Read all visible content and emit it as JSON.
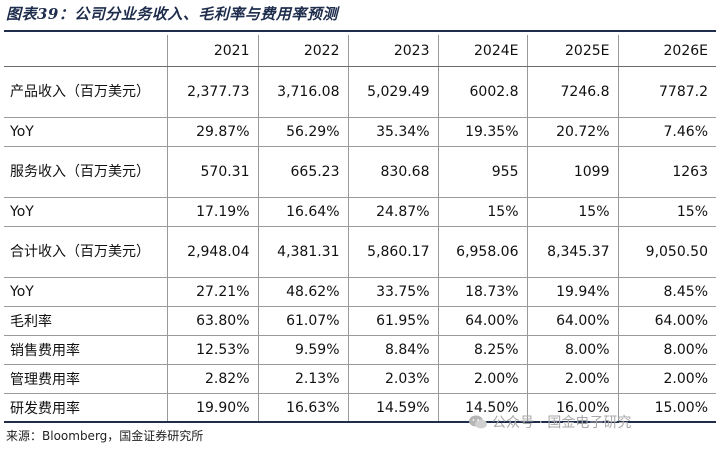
{
  "title": "图表39：公司分业务收入、毛利率与费用率预测",
  "columns": [
    "",
    "2021",
    "2022",
    "2023",
    "2024E",
    "2025E",
    "2026E"
  ],
  "rows": [
    {
      "label": "产品收入（百万美元）",
      "values": [
        "2,377.73",
        "3,716.08",
        "5,029.49",
        "6002.8",
        "7246.8",
        "7787.2"
      ]
    },
    {
      "label": "YoY",
      "values": [
        "29.87%",
        "56.29%",
        "35.34%",
        "19.35%",
        "20.72%",
        "7.46%"
      ]
    },
    {
      "label": "服务收入（百万美元）",
      "values": [
        "570.31",
        "665.23",
        "830.68",
        "955",
        "1099",
        "1263"
      ]
    },
    {
      "label": "YoY",
      "values": [
        "17.19%",
        "16.64%",
        "24.87%",
        "15%",
        "15%",
        "15%"
      ]
    },
    {
      "label": "合计收入（百万美元）",
      "values": [
        "2,948.04",
        "4,381.31",
        "5,860.17",
        "6,958.06",
        "8,345.37",
        "9,050.50"
      ]
    },
    {
      "label": "YoY",
      "values": [
        "27.21%",
        "48.62%",
        "33.75%",
        "18.73%",
        "19.94%",
        "8.45%"
      ]
    },
    {
      "label": "毛利率",
      "values": [
        "63.80%",
        "61.07%",
        "61.95%",
        "64.00%",
        "64.00%",
        "64.00%"
      ]
    },
    {
      "label": "销售费用率",
      "values": [
        "12.53%",
        "9.59%",
        "8.84%",
        "8.25%",
        "8.00%",
        "8.00%"
      ]
    },
    {
      "label": "管理费用率",
      "values": [
        "2.82%",
        "2.13%",
        "2.03%",
        "2.00%",
        "2.00%",
        "2.00%"
      ]
    },
    {
      "label": "研发费用率",
      "values": [
        "19.90%",
        "16.63%",
        "14.59%",
        "14.50%",
        "16.00%",
        "15.00%"
      ]
    }
  ],
  "source": "来源：Bloomberg，国金证券研究所",
  "watermark": "公众号 · 国金电子研究",
  "watermark_icon": "wechat-icon"
}
